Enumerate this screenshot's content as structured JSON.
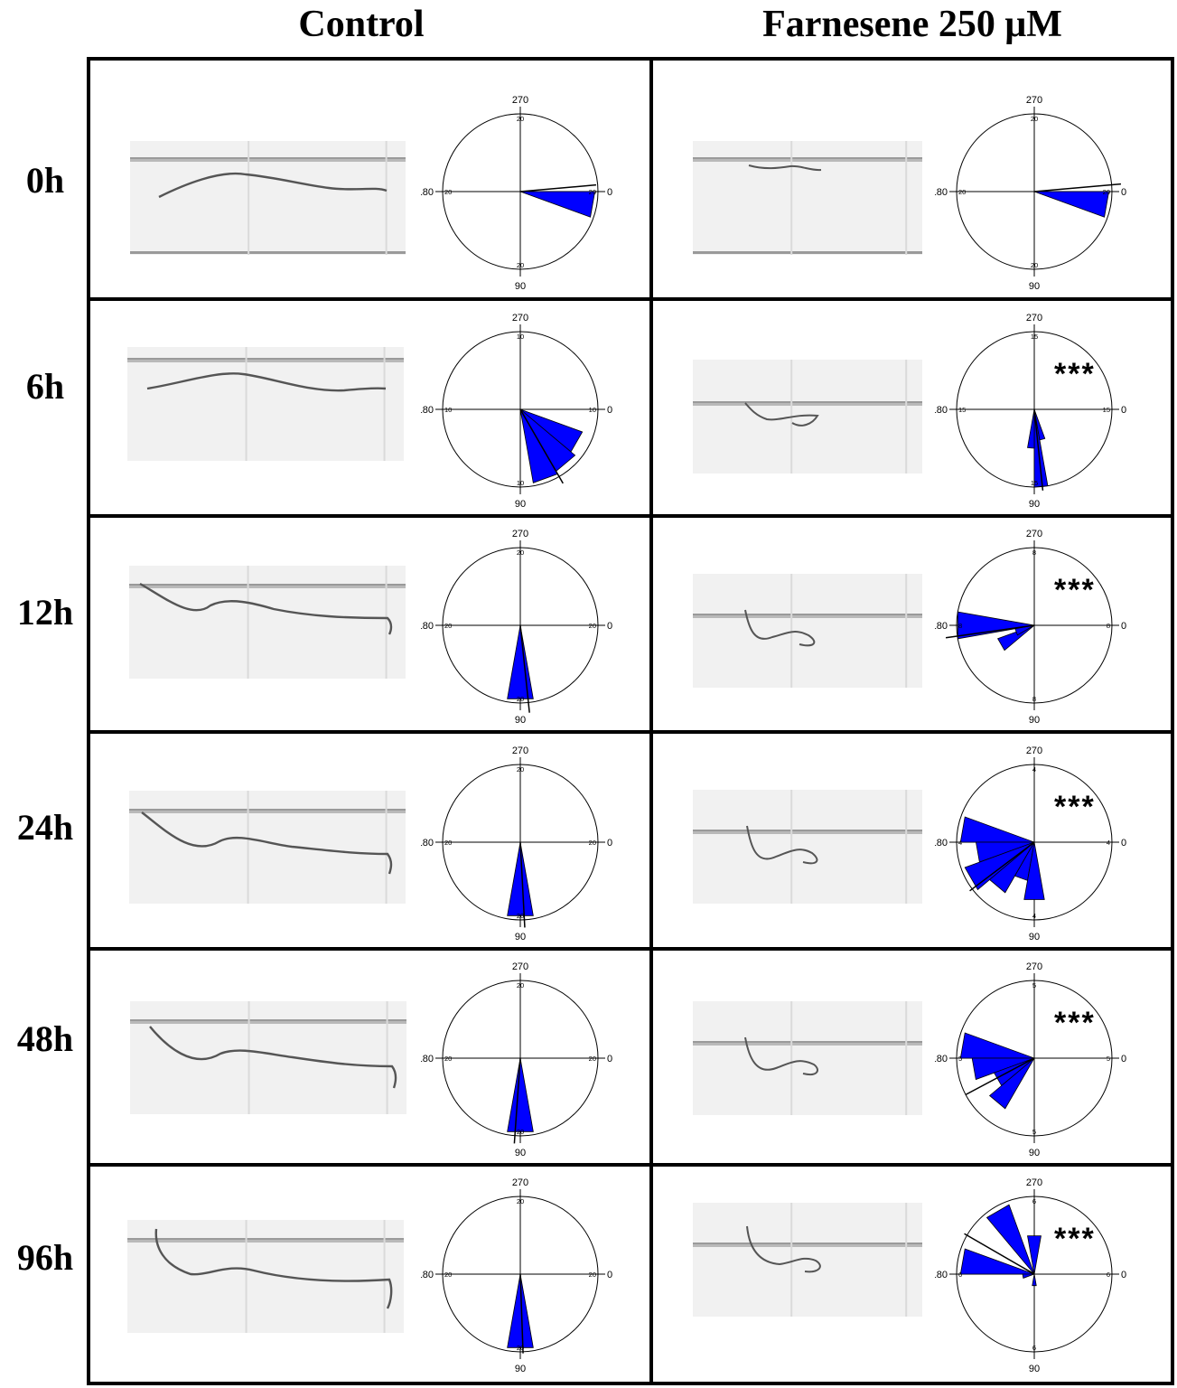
{
  "columns": [
    "Control",
    "Farnesene 250 μM"
  ],
  "rows": [
    "0h",
    "6h",
    "12h",
    "24h",
    "48h",
    "96h"
  ],
  "axis_labels": {
    "right": "0",
    "bottom": "90",
    "left": "180",
    "top": "270"
  },
  "colors": {
    "wedge": "#0000ff",
    "line": "#000000",
    "photo_bg": "#f1f1f1"
  },
  "significance": "***",
  "plots": [
    {
      "row": "0h",
      "condition": "Control",
      "scale": "20",
      "stars": false,
      "wedges": [
        {
          "from": 0,
          "to": 20,
          "r": 0.96
        }
      ],
      "mean_dir": 355,
      "mean_len": 0.98
    },
    {
      "row": "0h",
      "condition": "Farnesene 250 μM",
      "scale": "20",
      "stars": false,
      "wedges": [
        {
          "from": 0,
          "to": 20,
          "r": 0.96
        }
      ],
      "mean_dir": 355,
      "mean_len": 1.12
    },
    {
      "row": "6h",
      "condition": "Control",
      "scale": "10",
      "stars": false,
      "wedges": [
        {
          "from": 20,
          "to": 40,
          "r": 0.85
        },
        {
          "from": 40,
          "to": 60,
          "r": 0.92
        },
        {
          "from": 60,
          "to": 80,
          "r": 0.96
        }
      ],
      "mean_dir": 60,
      "mean_len": 1.1
    },
    {
      "row": "6h",
      "condition": "Farnesene 250 μM",
      "scale": "15",
      "stars": true,
      "wedges": [
        {
          "from": 80,
          "to": 90,
          "r": 1.0
        },
        {
          "from": 70,
          "to": 80,
          "r": 0.4
        },
        {
          "from": 90,
          "to": 100,
          "r": 0.5
        }
      ],
      "mean_dir": 84,
      "mean_len": 1.05
    },
    {
      "row": "12h",
      "condition": "Control",
      "scale": "20",
      "stars": false,
      "wedges": [
        {
          "from": 80,
          "to": 100,
          "r": 0.96
        }
      ],
      "mean_dir": 84,
      "mean_len": 1.13
    },
    {
      "row": "12h",
      "condition": "Farnesene 250 μM",
      "scale": "8",
      "stars": true,
      "wedges": [
        {
          "from": 170,
          "to": 190,
          "r": 1.0
        },
        {
          "from": 140,
          "to": 160,
          "r": 0.5
        },
        {
          "from": 150,
          "to": 170,
          "r": 0.25
        }
      ],
      "mean_dir": 172,
      "mean_len": 1.15
    },
    {
      "row": "24h",
      "condition": "Control",
      "scale": "20",
      "stars": false,
      "wedges": [
        {
          "from": 80,
          "to": 100,
          "r": 0.96
        }
      ],
      "mean_dir": 87,
      "mean_len": 1.1
    },
    {
      "row": "24h",
      "condition": "Farnesene 250 μM",
      "scale": "4",
      "stars": true,
      "wedges": [
        {
          "from": 180,
          "to": 200,
          "r": 0.95
        },
        {
          "from": 160,
          "to": 180,
          "r": 0.75
        },
        {
          "from": 140,
          "to": 160,
          "r": 0.95
        },
        {
          "from": 120,
          "to": 140,
          "r": 0.75
        },
        {
          "from": 100,
          "to": 120,
          "r": 0.5
        },
        {
          "from": 80,
          "to": 100,
          "r": 0.75
        }
      ],
      "mean_dir": 143,
      "mean_len": 1.04
    },
    {
      "row": "48h",
      "condition": "Control",
      "scale": "20",
      "stars": false,
      "wedges": [
        {
          "from": 80,
          "to": 100,
          "r": 0.96
        }
      ],
      "mean_dir": 94,
      "mean_len": 1.1
    },
    {
      "row": "48h",
      "condition": "Farnesene 250 μM",
      "scale": "5",
      "stars": true,
      "wedges": [
        {
          "from": 180,
          "to": 200,
          "r": 0.95
        },
        {
          "from": 160,
          "to": 180,
          "r": 0.8
        },
        {
          "from": 140,
          "to": 160,
          "r": 0.55
        },
        {
          "from": 120,
          "to": 140,
          "r": 0.75
        }
      ],
      "mean_dir": 152,
      "mean_len": 1.0
    },
    {
      "row": "96h",
      "condition": "Control",
      "scale": "20",
      "stars": false,
      "wedges": [
        {
          "from": 80,
          "to": 100,
          "r": 0.96
        }
      ],
      "mean_dir": 88,
      "mean_len": 1.02
    },
    {
      "row": "96h",
      "condition": "Farnesene 250 μM",
      "scale": "6",
      "stars": true,
      "wedges": [
        {
          "from": 230,
          "to": 250,
          "r": 0.95
        },
        {
          "from": 180,
          "to": 200,
          "r": 0.95
        },
        {
          "from": 260,
          "to": 280,
          "r": 0.5
        },
        {
          "from": 160,
          "to": 180,
          "r": 0.15
        },
        {
          "from": 80,
          "to": 100,
          "r": 0.15
        }
      ],
      "mean_dir": 210,
      "mean_len": 1.04
    }
  ]
}
